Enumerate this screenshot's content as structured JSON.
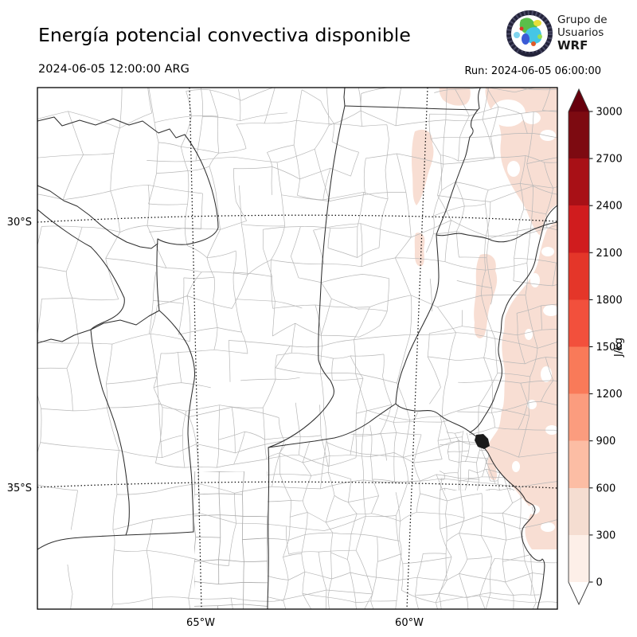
{
  "header": {
    "title": "Energía potencial convectiva disponible",
    "valid_time": "2024-06-05 12:00:00 ARG",
    "run_label": "Run: 2024-06-05 06:00:00",
    "logo": {
      "line1": "Grupo de",
      "line2": "Usuarios",
      "line3": "WRF"
    }
  },
  "map": {
    "lat_labels": [
      "30°S",
      "35°S"
    ],
    "lon_labels": [
      "65°W",
      "60°W"
    ],
    "shading_fill": "#f8ded3",
    "province_border_color": "#2e2e2e",
    "department_border_color": "#b7b7b7"
  },
  "colorbar": {
    "unit": "J/kg",
    "ticks": [
      0,
      300,
      600,
      900,
      1200,
      1500,
      1800,
      2100,
      2400,
      2700,
      3000
    ],
    "min": 0,
    "max": 3000,
    "segment_colors": [
      "#fdefe8",
      "#f5ddd1",
      "#fcbda4",
      "#fb9c7e",
      "#f97a59",
      "#f2503c",
      "#e43629",
      "#d01c1e",
      "#a81016",
      "#7d0a11"
    ],
    "over_color": "#67000d",
    "under_color": "#ffffff"
  }
}
